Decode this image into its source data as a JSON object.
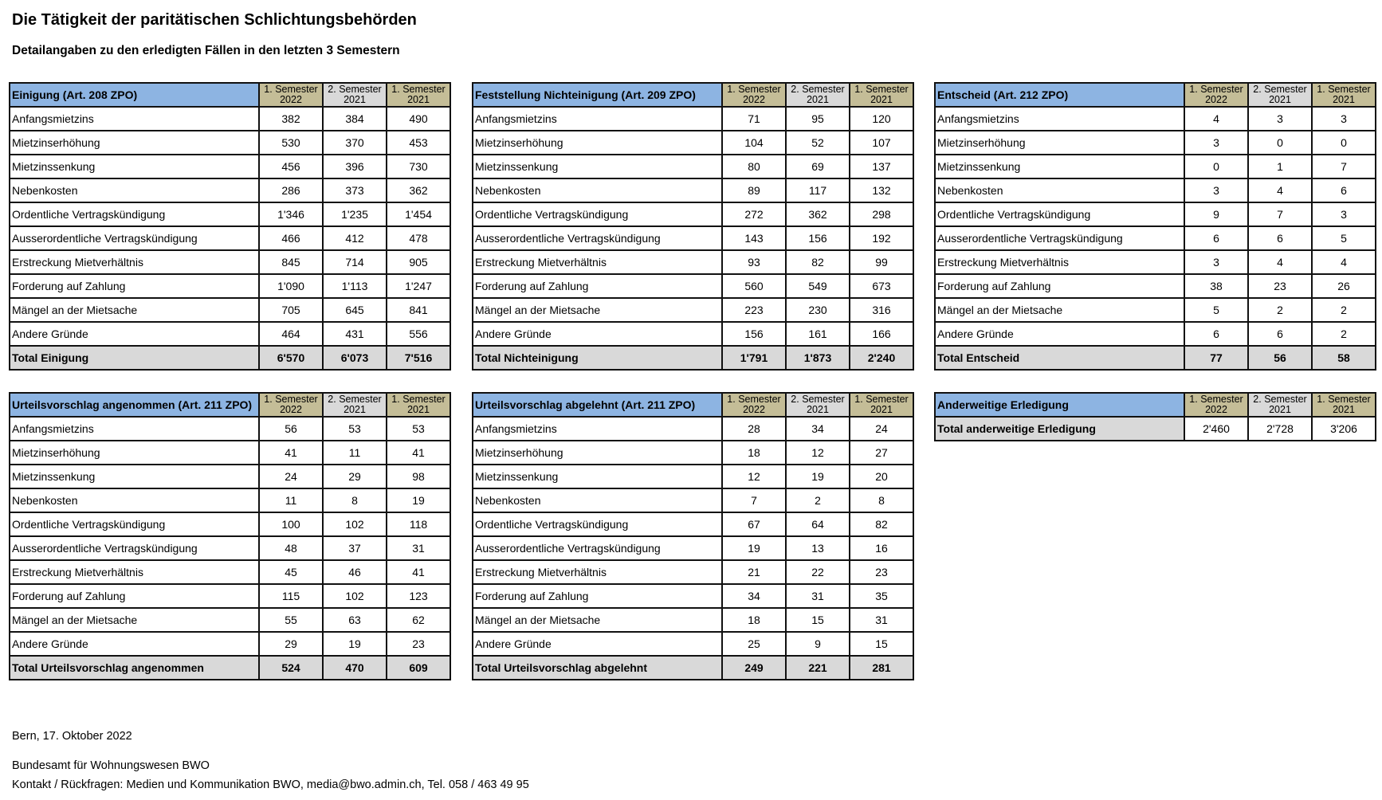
{
  "header": {
    "title": "Die Tätigkeit der paritätischen Schlichtungsbehörden",
    "subtitle": "Detailangaben zu den erledigten Fällen in den letzten 3 Semestern"
  },
  "colors": {
    "header_blue": "#8db4e2",
    "semester_tan": "#c4bd97",
    "semester_gray": "#d9d9d9",
    "total_gray": "#d9d9d9"
  },
  "semesters": [
    {
      "line1": "1. Semester",
      "line2": "2022"
    },
    {
      "line1": "2. Semester",
      "line2": "2021"
    },
    {
      "line1": "1. Semester",
      "line2": "2021"
    }
  ],
  "tables": [
    {
      "title": "Einigung (Art. 208 ZPO)",
      "rows": [
        {
          "label": "Anfangsmietzins",
          "values": [
            "382",
            "384",
            "490"
          ]
        },
        {
          "label": "Mietzinserhöhung",
          "values": [
            "530",
            "370",
            "453"
          ]
        },
        {
          "label": "Mietzinssenkung",
          "values": [
            "456",
            "396",
            "730"
          ]
        },
        {
          "label": "Nebenkosten",
          "values": [
            "286",
            "373",
            "362"
          ]
        },
        {
          "label": "Ordentliche Vertragskündigung",
          "values": [
            "1'346",
            "1'235",
            "1'454"
          ]
        },
        {
          "label": "Ausserordentliche Vertragskündigung",
          "values": [
            "466",
            "412",
            "478"
          ]
        },
        {
          "label": "Erstreckung Mietverhältnis",
          "values": [
            "845",
            "714",
            "905"
          ]
        },
        {
          "label": "Forderung auf Zahlung",
          "values": [
            "1'090",
            "1'113",
            "1'247"
          ]
        },
        {
          "label": "Mängel an der Mietsache",
          "values": [
            "705",
            "645",
            "841"
          ]
        },
        {
          "label": "Andere Gründe",
          "values": [
            "464",
            "431",
            "556"
          ]
        }
      ],
      "total": {
        "label": "Total Einigung",
        "values": [
          "6'570",
          "6'073",
          "7'516"
        ]
      }
    },
    {
      "title": "Feststellung Nichteinigung (Art. 209 ZPO)",
      "rows": [
        {
          "label": "Anfangsmietzins",
          "values": [
            "71",
            "95",
            "120"
          ]
        },
        {
          "label": "Mietzinserhöhung",
          "values": [
            "104",
            "52",
            "107"
          ]
        },
        {
          "label": "Mietzinssenkung",
          "values": [
            "80",
            "69",
            "137"
          ]
        },
        {
          "label": "Nebenkosten",
          "values": [
            "89",
            "117",
            "132"
          ]
        },
        {
          "label": "Ordentliche Vertragskündigung",
          "values": [
            "272",
            "362",
            "298"
          ]
        },
        {
          "label": "Ausserordentliche Vertragskündigung",
          "values": [
            "143",
            "156",
            "192"
          ]
        },
        {
          "label": "Erstreckung Mietverhältnis",
          "values": [
            "93",
            "82",
            "99"
          ]
        },
        {
          "label": "Forderung auf Zahlung",
          "values": [
            "560",
            "549",
            "673"
          ]
        },
        {
          "label": "Mängel an der Mietsache",
          "values": [
            "223",
            "230",
            "316"
          ]
        },
        {
          "label": "Andere Gründe",
          "values": [
            "156",
            "161",
            "166"
          ]
        }
      ],
      "total": {
        "label": "Total Nichteinigung",
        "values": [
          "1'791",
          "1'873",
          "2'240"
        ]
      }
    },
    {
      "title": "Entscheid (Art. 212 ZPO)",
      "rows": [
        {
          "label": "Anfangsmietzins",
          "values": [
            "4",
            "3",
            "3"
          ]
        },
        {
          "label": "Mietzinserhöhung",
          "values": [
            "3",
            "0",
            "0"
          ]
        },
        {
          "label": "Mietzinssenkung",
          "values": [
            "0",
            "1",
            "7"
          ]
        },
        {
          "label": "Nebenkosten",
          "values": [
            "3",
            "4",
            "6"
          ]
        },
        {
          "label": "Ordentliche Vertragskündigung",
          "values": [
            "9",
            "7",
            "3"
          ]
        },
        {
          "label": "Ausserordentliche Vertragskündigung",
          "values": [
            "6",
            "6",
            "5"
          ]
        },
        {
          "label": "Erstreckung Mietverhältnis",
          "values": [
            "3",
            "4",
            "4"
          ]
        },
        {
          "label": "Forderung auf Zahlung",
          "values": [
            "38",
            "23",
            "26"
          ]
        },
        {
          "label": "Mängel an der Mietsache",
          "values": [
            "5",
            "2",
            "2"
          ]
        },
        {
          "label": "Andere Gründe",
          "values": [
            "6",
            "6",
            "2"
          ]
        }
      ],
      "total": {
        "label": "Total Entscheid",
        "values": [
          "77",
          "56",
          "58"
        ]
      }
    },
    {
      "title": "Urteilsvorschlag angenommen (Art. 211 ZPO)",
      "rows": [
        {
          "label": "Anfangsmietzins",
          "values": [
            "56",
            "53",
            "53"
          ]
        },
        {
          "label": "Mietzinserhöhung",
          "values": [
            "41",
            "11",
            "41"
          ]
        },
        {
          "label": "Mietzinssenkung",
          "values": [
            "24",
            "29",
            "98"
          ]
        },
        {
          "label": "Nebenkosten",
          "values": [
            "11",
            "8",
            "19"
          ]
        },
        {
          "label": "Ordentliche Vertragskündigung",
          "values": [
            "100",
            "102",
            "118"
          ]
        },
        {
          "label": "Ausserordentliche Vertragskündigung",
          "values": [
            "48",
            "37",
            "31"
          ]
        },
        {
          "label": "Erstreckung Mietverhältnis",
          "values": [
            "45",
            "46",
            "41"
          ]
        },
        {
          "label": "Forderung auf Zahlung",
          "values": [
            "115",
            "102",
            "123"
          ]
        },
        {
          "label": "Mängel an der Mietsache",
          "values": [
            "55",
            "63",
            "62"
          ]
        },
        {
          "label": "Andere Gründe",
          "values": [
            "29",
            "19",
            "23"
          ]
        }
      ],
      "total": {
        "label": "Total Urteilsvorschlag angenommen",
        "values": [
          "524",
          "470",
          "609"
        ]
      }
    },
    {
      "title": "Urteilsvorschlag abgelehnt (Art. 211 ZPO)",
      "rows": [
        {
          "label": "Anfangsmietzins",
          "values": [
            "28",
            "34",
            "24"
          ]
        },
        {
          "label": "Mietzinserhöhung",
          "values": [
            "18",
            "12",
            "27"
          ]
        },
        {
          "label": "Mietzinssenkung",
          "values": [
            "12",
            "19",
            "20"
          ]
        },
        {
          "label": "Nebenkosten",
          "values": [
            "7",
            "2",
            "8"
          ]
        },
        {
          "label": "Ordentliche Vertragskündigung",
          "values": [
            "67",
            "64",
            "82"
          ]
        },
        {
          "label": "Ausserordentliche Vertragskündigung",
          "values": [
            "19",
            "13",
            "16"
          ]
        },
        {
          "label": "Erstreckung Mietverhältnis",
          "values": [
            "21",
            "22",
            "23"
          ]
        },
        {
          "label": "Forderung auf Zahlung",
          "values": [
            "34",
            "31",
            "35"
          ]
        },
        {
          "label": "Mängel an der Mietsache",
          "values": [
            "18",
            "15",
            "31"
          ]
        },
        {
          "label": "Andere Gründe",
          "values": [
            "25",
            "9",
            "15"
          ]
        }
      ],
      "total": {
        "label": "Total Urteilsvorschlag abgelehnt",
        "values": [
          "249",
          "221",
          "281"
        ]
      }
    },
    {
      "title": "Anderweitige Erledigung",
      "rows": [],
      "total": {
        "label": "Total anderweitige Erledigung",
        "values": [
          "2'460",
          "2'728",
          "3'206"
        ],
        "plain_values": true
      }
    }
  ],
  "footer": {
    "place_date": "Bern, 17. Oktober 2022",
    "office": "Bundesamt für Wohnungswesen BWO",
    "contact": "Kontakt / Rückfragen: Medien und Kommunikation BWO, media@bwo.admin.ch, Tel. 058 / 463 49 95"
  }
}
